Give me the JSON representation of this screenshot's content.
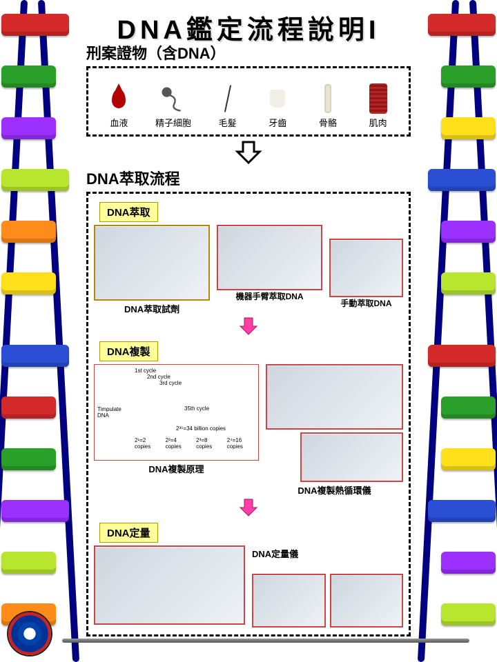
{
  "title": "DNA鑑定流程說明I",
  "sections": {
    "evidence_title": "刑案證物（含DNA）",
    "evidence_items": [
      {
        "label": "血液",
        "icon": "blood"
      },
      {
        "label": "精子細胞",
        "icon": "sperm"
      },
      {
        "label": "毛髮",
        "icon": "hair"
      },
      {
        "label": "牙齒",
        "icon": "tooth"
      },
      {
        "label": "骨骼",
        "icon": "bone"
      },
      {
        "label": "肌肉",
        "icon": "muscle"
      }
    ],
    "extraction_title": "DNA萃取流程",
    "extract_box_label": "DNA萃取",
    "extract_left_caption": "DNA萃取試劑",
    "extract_mid_caption": "機器手臂萃取DNA",
    "extract_right_caption": "手動萃取DNA",
    "amplify_label": "DNA複製",
    "amplify_left_caption": "DNA複製原理",
    "amplify_right_caption": "DNA複製熱循環儀",
    "amplify_tree": {
      "root": "Timpulate DNA",
      "cycles": [
        "1st cycle",
        "2nd cycle",
        "3rd cycle"
      ],
      "note": "35th cycle",
      "copies": [
        "2¹=2 copies",
        "2²=4 copies",
        "2³=8 copies",
        "2⁴=16 copies",
        "2³⁵=34 billion copies"
      ]
    },
    "quant_label": "DNA定量",
    "quant_caption": "DNA定量儀"
  },
  "helix_colors_left": [
    "#d42a2a",
    "#2aa02a",
    "#9b30ff",
    "#b8e62e",
    "#ff8c1a",
    "#ffe01a",
    "#2a4fd4",
    "#d42a2a",
    "#2aa02a",
    "#9b30ff",
    "#b8e62e",
    "#ff8c1a"
  ],
  "helix_colors_right": [
    "#d42a2a",
    "#2aa02a",
    "#ffe01a",
    "#2a4fd4",
    "#9b30ff",
    "#b8e62e",
    "#d42a2a",
    "#2aa02a",
    "#ffe01a",
    "#2a4fd4",
    "#9b30ff",
    "#b8e62e"
  ],
  "helix_positions": [
    20,
    95,
    170,
    245,
    320,
    395,
    500,
    575,
    650,
    725,
    800,
    875
  ],
  "arrow_colors": {
    "outline": "#000",
    "pink": "#ff3fa6"
  }
}
